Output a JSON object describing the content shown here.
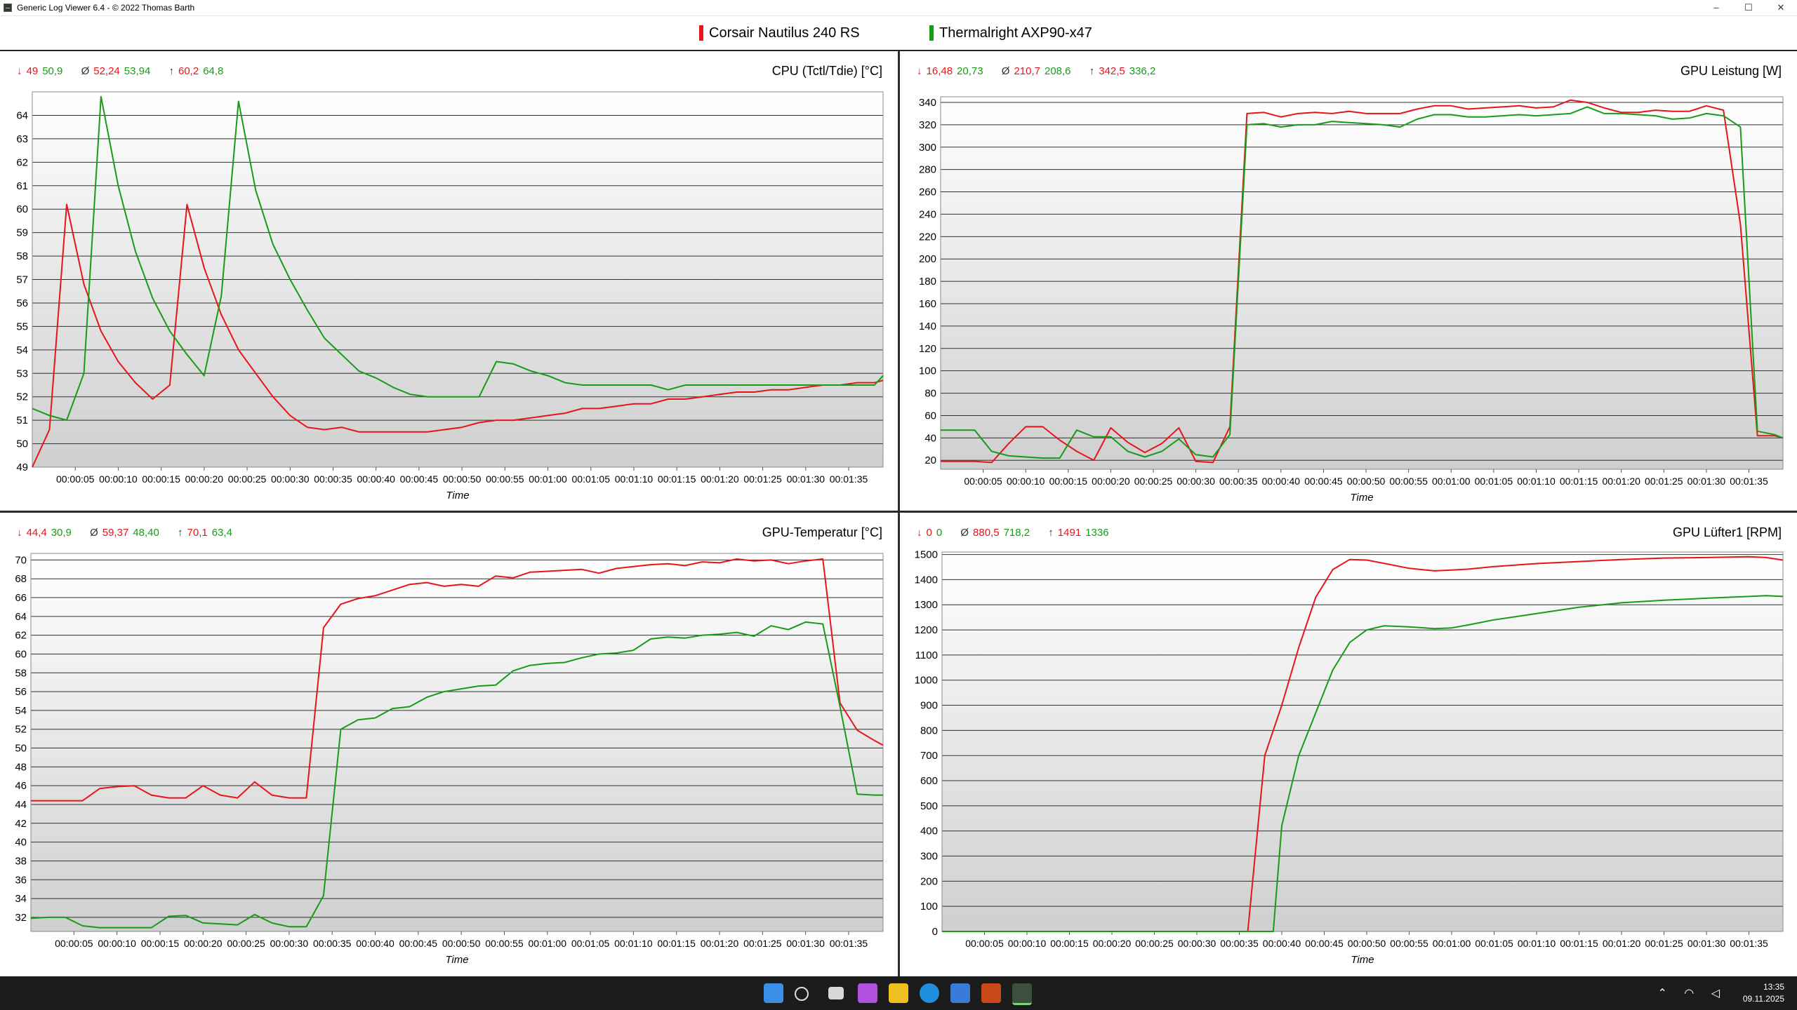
{
  "window": {
    "title": "Generic Log Viewer 6.4 - © 2022 Thomas Barth",
    "minimize": "–",
    "maximize": "☐",
    "close": "✕"
  },
  "legend": [
    {
      "name": "Corsair Nautilus 240 RS",
      "color": "#e8141c"
    },
    {
      "name": "Thermalright AXP90-x47",
      "color": "#169c16"
    }
  ],
  "colors": {
    "series1": "#e8141c",
    "series2": "#169c16",
    "grid": "#303030"
  },
  "panels": [
    {
      "title": "CPU (Tctl/Tdie) [°C]",
      "stats": {
        "min": [
          "49",
          "50,9"
        ],
        "avg": [
          "52,24",
          "53,94"
        ],
        "max": [
          "60,2",
          "64,8"
        ]
      }
    },
    {
      "title": "GPU Leistung [W]",
      "stats": {
        "min": [
          "16,48",
          "20,73"
        ],
        "avg": [
          "210,7",
          "208,6"
        ],
        "max": [
          "342,5",
          "336,2"
        ]
      }
    },
    {
      "title": "GPU-Temperatur [°C]",
      "stats": {
        "min": [
          "44,4",
          "30,9"
        ],
        "avg": [
          "59,37",
          "48,40"
        ],
        "max": [
          "70,1",
          "63,4"
        ]
      }
    },
    {
      "title": "GPU Lüfter1 [RPM]",
      "stats": {
        "min": [
          "0",
          "0"
        ],
        "avg": [
          "880,5",
          "718,2"
        ],
        "max": [
          "1491",
          "1336"
        ]
      }
    }
  ],
  "stat_symbols": {
    "min": "↓",
    "avg": "Ø",
    "max": "↑"
  },
  "chart_data": [
    {
      "type": "line",
      "title": "CPU (Tctl/Tdie) [°C]",
      "xlabel": "Time",
      "ylabel": "",
      "xlim": [
        0,
        99
      ],
      "ylim": [
        49,
        65
      ],
      "yticks": [
        49,
        50,
        51,
        52,
        53,
        54,
        55,
        56,
        57,
        58,
        59,
        60,
        61,
        62,
        63,
        64
      ],
      "xticks": [
        "00:00:05",
        "00:00:10",
        "00:00:15",
        "00:00:20",
        "00:00:25",
        "00:00:30",
        "00:00:35",
        "00:00:40",
        "00:00:45",
        "00:00:50",
        "00:00:55",
        "00:01:00",
        "00:01:05",
        "00:01:10",
        "00:01:15",
        "00:01:20",
        "00:01:25",
        "00:01:30",
        "00:01:35"
      ],
      "xtick_values": [
        5,
        10,
        15,
        20,
        25,
        30,
        35,
        40,
        45,
        50,
        55,
        60,
        65,
        70,
        75,
        80,
        85,
        90,
        95
      ],
      "series": [
        {
          "name": "Corsair Nautilus 240 RS",
          "x": [
            0,
            2,
            4,
            6,
            8,
            10,
            12,
            14,
            16,
            18,
            20,
            22,
            24,
            26,
            28,
            30,
            32,
            34,
            36,
            38,
            40,
            42,
            44,
            46,
            48,
            50,
            52,
            54,
            56,
            58,
            60,
            62,
            64,
            66,
            68,
            70,
            72,
            74,
            76,
            78,
            80,
            82,
            84,
            86,
            88,
            90,
            92,
            94,
            96,
            98,
            99
          ],
          "y": [
            49,
            50.6,
            60.2,
            56.8,
            54.8,
            53.5,
            52.6,
            51.9,
            52.5,
            60.2,
            57.5,
            55.5,
            54,
            53,
            52,
            51.2,
            50.7,
            50.6,
            50.7,
            50.5,
            50.5,
            50.5,
            50.5,
            50.5,
            50.6,
            50.7,
            50.9,
            51,
            51,
            51.1,
            51.2,
            51.3,
            51.5,
            51.5,
            51.6,
            51.7,
            51.7,
            51.9,
            51.9,
            52,
            52.1,
            52.2,
            52.2,
            52.3,
            52.3,
            52.4,
            52.5,
            52.5,
            52.6,
            52.6,
            52.7
          ]
        },
        {
          "name": "Thermalright AXP90-x47",
          "x": [
            0,
            2,
            4,
            6,
            8,
            10,
            12,
            14,
            16,
            18,
            20,
            22,
            24,
            26,
            28,
            30,
            32,
            34,
            36,
            38,
            40,
            42,
            44,
            46,
            48,
            50,
            52,
            54,
            56,
            58,
            60,
            62,
            64,
            66,
            68,
            70,
            72,
            74,
            76,
            78,
            80,
            82,
            84,
            86,
            88,
            90,
            92,
            94,
            96,
            98,
            99
          ],
          "y": [
            51.5,
            51.2,
            51,
            53,
            64.8,
            61,
            58.2,
            56.2,
            54.8,
            53.8,
            52.9,
            56.3,
            64.6,
            60.8,
            58.5,
            57,
            55.7,
            54.5,
            53.8,
            53.1,
            52.8,
            52.4,
            52.1,
            52,
            52,
            52,
            52,
            53.5,
            53.4,
            53.1,
            52.9,
            52.6,
            52.5,
            52.5,
            52.5,
            52.5,
            52.5,
            52.3,
            52.5,
            52.5,
            52.5,
            52.5,
            52.5,
            52.5,
            52.5,
            52.5,
            52.5,
            52.5,
            52.5,
            52.5,
            52.9
          ]
        }
      ]
    },
    {
      "type": "line",
      "title": "GPU Leistung [W]",
      "xlabel": "Time",
      "ylabel": "",
      "xlim": [
        0,
        99
      ],
      "ylim": [
        12,
        345
      ],
      "yticks": [
        20,
        40,
        60,
        80,
        100,
        120,
        140,
        160,
        180,
        200,
        220,
        240,
        260,
        280,
        300,
        320,
        340
      ],
      "xticks": [
        "00:00:05",
        "00:00:10",
        "00:00:15",
        "00:00:20",
        "00:00:25",
        "00:00:30",
        "00:00:35",
        "00:00:40",
        "00:00:45",
        "00:00:50",
        "00:00:55",
        "00:01:00",
        "00:01:05",
        "00:01:10",
        "00:01:15",
        "00:01:20",
        "00:01:25",
        "00:01:30",
        "00:01:35"
      ],
      "xtick_values": [
        5,
        10,
        15,
        20,
        25,
        30,
        35,
        40,
        45,
        50,
        55,
        60,
        65,
        70,
        75,
        80,
        85,
        90,
        95
      ],
      "series": [
        {
          "name": "Corsair Nautilus 240 RS",
          "x": [
            0,
            2,
            4,
            6,
            8,
            10,
            12,
            14,
            16,
            18,
            20,
            22,
            24,
            26,
            28,
            30,
            32,
            34,
            36,
            38,
            40,
            42,
            44,
            46,
            48,
            50,
            52,
            54,
            56,
            58,
            60,
            62,
            64,
            66,
            68,
            70,
            72,
            74,
            76,
            78,
            80,
            82,
            84,
            86,
            88,
            90,
            92,
            94,
            96,
            98,
            99
          ],
          "y": [
            19,
            19,
            19,
            18,
            35,
            50,
            50,
            38,
            28,
            20,
            49,
            36,
            27,
            35,
            49,
            19,
            18,
            50,
            330,
            331,
            327,
            330,
            331,
            330,
            332,
            330,
            330,
            330,
            334,
            337,
            337,
            334,
            335,
            336,
            337,
            335,
            336,
            342,
            340,
            335,
            331,
            331,
            333,
            332,
            332,
            337,
            333,
            231,
            42,
            42,
            40
          ]
        },
        {
          "name": "Thermalright AXP90-x47",
          "x": [
            0,
            2,
            4,
            6,
            8,
            10,
            12,
            14,
            16,
            18,
            20,
            22,
            24,
            26,
            28,
            30,
            32,
            34,
            36,
            38,
            40,
            42,
            44,
            46,
            48,
            50,
            52,
            54,
            56,
            58,
            60,
            62,
            64,
            66,
            68,
            70,
            72,
            74,
            76,
            78,
            80,
            82,
            84,
            86,
            88,
            90,
            92,
            94,
            96,
            98,
            99
          ],
          "y": [
            47,
            47,
            47,
            28,
            24,
            23,
            22,
            22,
            47,
            41,
            41,
            28,
            23,
            28,
            39,
            25,
            23,
            43,
            320,
            321,
            318,
            320,
            320,
            323,
            322,
            321,
            320,
            318,
            325,
            329,
            329,
            327,
            327,
            328,
            329,
            328,
            329,
            330,
            336,
            330,
            330,
            329,
            328,
            325,
            326,
            330,
            328,
            318,
            46,
            43,
            40
          ]
        }
      ]
    },
    {
      "type": "line",
      "title": "GPU-Temperatur [°C]",
      "xlabel": "Time",
      "ylabel": "",
      "xlim": [
        0,
        99
      ],
      "ylim": [
        30.5,
        70.7
      ],
      "yticks": [
        32,
        34,
        36,
        38,
        40,
        42,
        44,
        46,
        48,
        50,
        52,
        54,
        56,
        58,
        60,
        62,
        64,
        66,
        68,
        70
      ],
      "xticks": [
        "00:00:05",
        "00:00:10",
        "00:00:15",
        "00:00:20",
        "00:00:25",
        "00:00:30",
        "00:00:35",
        "00:00:40",
        "00:00:45",
        "00:00:50",
        "00:00:55",
        "00:01:00",
        "00:01:05",
        "00:01:10",
        "00:01:15",
        "00:01:20",
        "00:01:25",
        "00:01:30",
        "00:01:35"
      ],
      "xtick_values": [
        5,
        10,
        15,
        20,
        25,
        30,
        35,
        40,
        45,
        50,
        55,
        60,
        65,
        70,
        75,
        80,
        85,
        90,
        95
      ],
      "series": [
        {
          "name": "Corsair Nautilus 240 RS",
          "x": [
            0,
            2,
            4,
            6,
            8,
            10,
            12,
            14,
            16,
            18,
            20,
            22,
            24,
            26,
            28,
            30,
            32,
            34,
            36,
            38,
            40,
            42,
            44,
            46,
            48,
            50,
            52,
            54,
            56,
            58,
            60,
            62,
            64,
            66,
            68,
            70,
            72,
            74,
            76,
            78,
            80,
            82,
            84,
            86,
            88,
            90,
            92,
            94,
            96,
            98,
            99
          ],
          "y": [
            44.4,
            44.4,
            44.4,
            44.4,
            45.7,
            45.9,
            46,
            45,
            44.7,
            44.7,
            46,
            45,
            44.7,
            46.4,
            45,
            44.7,
            44.7,
            62.8,
            65.3,
            65.9,
            66.2,
            66.8,
            67.4,
            67.6,
            67.2,
            67.4,
            67.2,
            68.3,
            68.1,
            68.7,
            68.8,
            68.9,
            69,
            68.6,
            69.1,
            69.3,
            69.5,
            69.6,
            69.4,
            69.8,
            69.7,
            70.1,
            69.9,
            70,
            69.6,
            69.9,
            70.1,
            54.8,
            51.9,
            50.8,
            50.3
          ]
        },
        {
          "name": "Thermalright AXP90-x47",
          "x": [
            0,
            2,
            4,
            6,
            8,
            10,
            12,
            14,
            16,
            18,
            20,
            22,
            24,
            26,
            28,
            30,
            32,
            34,
            36,
            38,
            40,
            42,
            44,
            46,
            48,
            50,
            52,
            54,
            56,
            58,
            60,
            62,
            64,
            66,
            68,
            70,
            72,
            74,
            76,
            78,
            80,
            82,
            84,
            86,
            88,
            90,
            92,
            94,
            96,
            98,
            99
          ],
          "y": [
            31.9,
            32,
            32,
            31.1,
            30.9,
            30.9,
            30.9,
            30.9,
            32.1,
            32.2,
            31.4,
            31.3,
            31.2,
            32.3,
            31.4,
            31,
            31,
            34.3,
            52,
            53,
            53.2,
            54.2,
            54.4,
            55.4,
            56,
            56.3,
            56.6,
            56.7,
            58.2,
            58.8,
            59,
            59.1,
            59.6,
            60,
            60.1,
            60.4,
            61.6,
            61.8,
            61.7,
            62,
            62.1,
            62.3,
            61.9,
            63,
            62.6,
            63.4,
            63.2,
            54.4,
            45.1,
            45,
            45
          ]
        }
      ]
    },
    {
      "type": "line",
      "title": "GPU Lüfter1 [RPM]",
      "xlabel": "Time",
      "ylabel": "",
      "xlim": [
        0,
        99
      ],
      "ylim": [
        0,
        1510
      ],
      "yticks": [
        0,
        100,
        200,
        300,
        400,
        500,
        600,
        700,
        800,
        900,
        1000,
        1100,
        1200,
        1300,
        1400,
        1500
      ],
      "xticks": [
        "00:00:05",
        "00:00:10",
        "00:00:15",
        "00:00:20",
        "00:00:25",
        "00:00:30",
        "00:00:35",
        "00:00:40",
        "00:00:45",
        "00:00:50",
        "00:00:55",
        "00:01:00",
        "00:01:05",
        "00:01:10",
        "00:01:15",
        "00:01:20",
        "00:01:25",
        "00:01:30",
        "00:01:35"
      ],
      "xtick_values": [
        5,
        10,
        15,
        20,
        25,
        30,
        35,
        40,
        45,
        50,
        55,
        60,
        65,
        70,
        75,
        80,
        85,
        90,
        95
      ],
      "series": [
        {
          "name": "Corsair Nautilus 240 RS",
          "x": [
            0,
            5,
            10,
            15,
            20,
            25,
            30,
            35,
            36,
            38,
            40,
            42,
            44,
            46,
            48,
            50,
            52,
            55,
            58,
            60,
            62,
            65,
            70,
            75,
            80,
            85,
            90,
            95,
            97,
            99
          ],
          "y": [
            0,
            0,
            0,
            0,
            0,
            0,
            0,
            0,
            0,
            700,
            900,
            1130,
            1330,
            1440,
            1480,
            1478,
            1465,
            1445,
            1435,
            1438,
            1442,
            1452,
            1464,
            1472,
            1480,
            1486,
            1488,
            1491,
            1488,
            1478
          ]
        },
        {
          "name": "Thermalright AXP90-x47",
          "x": [
            0,
            5,
            10,
            15,
            20,
            25,
            30,
            35,
            38,
            39,
            40,
            42,
            44,
            46,
            48,
            50,
            52,
            55,
            58,
            60,
            62,
            65,
            70,
            75,
            80,
            85,
            90,
            95,
            97,
            99
          ],
          "y": [
            0,
            0,
            0,
            0,
            0,
            0,
            0,
            0,
            0,
            0,
            420,
            700,
            870,
            1040,
            1150,
            1200,
            1216,
            1212,
            1205,
            1208,
            1220,
            1240,
            1265,
            1290,
            1308,
            1318,
            1326,
            1333,
            1336,
            1333
          ]
        }
      ]
    }
  ],
  "taskbar": {
    "time": "13:35",
    "date": "09.11.2025",
    "tray": "⌃ ◠ ◁"
  }
}
